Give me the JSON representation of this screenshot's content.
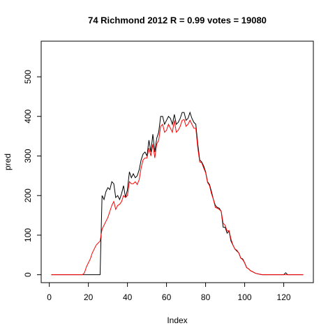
{
  "chart_data": {
    "type": "line",
    "title": "74 Richmond 2012 R = 0.99 votes = 19080",
    "x_label": "Index",
    "y_label": "pred",
    "x": [
      1,
      2,
      3,
      4,
      5,
      6,
      7,
      8,
      9,
      10,
      11,
      12,
      13,
      14,
      15,
      16,
      17,
      18,
      19,
      20,
      21,
      22,
      23,
      24,
      25,
      26,
      27,
      28,
      29,
      30,
      31,
      32,
      33,
      34,
      35,
      36,
      37,
      38,
      39,
      40,
      41,
      42,
      43,
      44,
      45,
      46,
      47,
      48,
      49,
      50,
      51,
      52,
      53,
      54,
      55,
      56,
      57,
      58,
      59,
      60,
      61,
      62,
      63,
      64,
      65,
      66,
      67,
      68,
      69,
      70,
      71,
      72,
      73,
      74,
      75,
      76,
      77,
      78,
      79,
      80,
      81,
      82,
      83,
      84,
      85,
      86,
      87,
      88,
      89,
      90,
      91,
      92,
      93,
      94,
      95,
      96,
      97,
      98,
      99,
      100,
      101,
      102,
      103,
      104,
      105,
      106,
      107,
      108,
      109,
      110,
      111,
      112,
      113,
      114,
      115,
      116,
      117,
      118,
      119,
      120,
      121,
      122,
      123,
      124,
      125,
      126,
      127,
      128,
      129,
      130
    ],
    "series": [
      {
        "color": "#000000",
        "values": [
          0,
          0,
          0,
          0,
          0,
          0,
          0,
          0,
          0,
          0,
          0,
          0,
          0,
          0,
          0,
          0,
          0,
          0,
          0,
          0,
          0,
          0,
          0,
          0,
          0,
          0,
          200,
          190,
          210,
          220,
          215,
          235,
          230,
          195,
          200,
          190,
          205,
          225,
          195,
          215,
          260,
          245,
          255,
          245,
          250,
          265,
          290,
          305,
          310,
          300,
          340,
          310,
          355,
          310,
          345,
          360,
          400,
          400,
          380,
          390,
          400,
          395,
          380,
          405,
          380,
          385,
          395,
          410,
          410,
          390,
          395,
          410,
          395,
          385,
          380,
          330,
          290,
          285,
          275,
          260,
          235,
          228,
          210,
          190,
          175,
          170,
          168,
          160,
          120,
          120,
          105,
          110,
          85,
          75,
          65,
          60,
          55,
          42,
          40,
          30,
          18,
          15,
          10,
          8,
          5,
          3,
          2,
          1,
          0,
          0,
          0,
          0,
          0,
          0,
          0,
          0,
          0,
          0,
          0,
          0,
          5,
          0,
          0,
          0,
          0,
          0,
          0,
          0,
          0,
          0
        ]
      },
      {
        "color": "#ff0000",
        "values": [
          0,
          0,
          0,
          0,
          0,
          0,
          0,
          0,
          0,
          0,
          0,
          0,
          0,
          0,
          0,
          0,
          0,
          5,
          20,
          30,
          40,
          55,
          65,
          75,
          80,
          85,
          115,
          125,
          135,
          145,
          160,
          175,
          185,
          165,
          175,
          178,
          185,
          200,
          195,
          200,
          235,
          230,
          230,
          235,
          228,
          240,
          270,
          290,
          295,
          295,
          320,
          300,
          330,
          295,
          330,
          340,
          375,
          380,
          360,
          365,
          380,
          370,
          360,
          390,
          360,
          365,
          375,
          390,
          392,
          375,
          380,
          390,
          380,
          370,
          370,
          320,
          285,
          283,
          270,
          258,
          233,
          225,
          205,
          190,
          170,
          168,
          165,
          160,
          130,
          125,
          110,
          112,
          90,
          75,
          65,
          62,
          55,
          42,
          38,
          30,
          18,
          15,
          10,
          8,
          5,
          3,
          2,
          1,
          0,
          0,
          0,
          0,
          0,
          0,
          0,
          0,
          0,
          0,
          0,
          0,
          0,
          0,
          0,
          0,
          0,
          0,
          0,
          0,
          0,
          0
        ]
      }
    ],
    "xlim": [
      -4.16,
      135.16
    ],
    "xticks": [
      0,
      20,
      40,
      60,
      80,
      100,
      120
    ],
    "ylim": [
      -20,
      590
    ],
    "yticks": [
      0,
      100,
      200,
      300,
      400,
      500
    ]
  }
}
